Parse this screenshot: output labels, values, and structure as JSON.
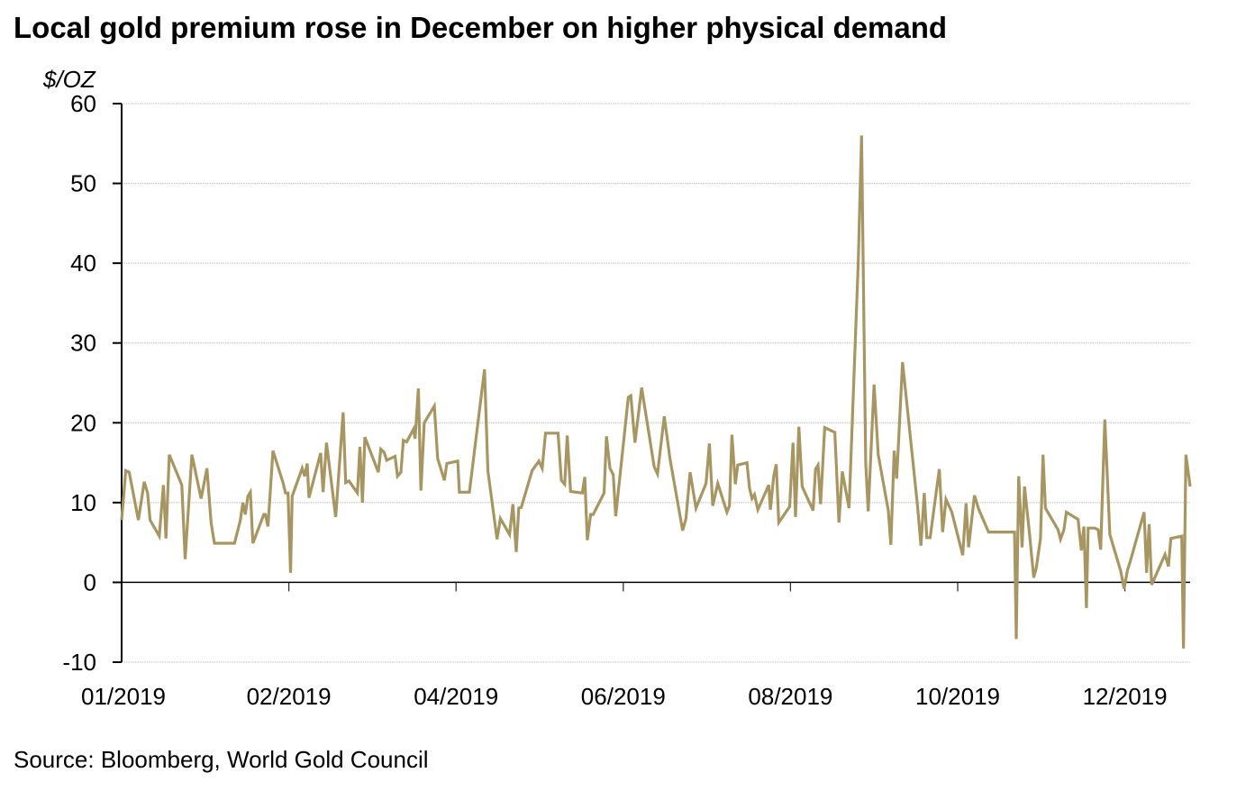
{
  "chart_data": {
    "type": "line",
    "title": "Local gold premium rose in December on higher physical demand",
    "ylabel": "$/OZ",
    "xlabel": "",
    "source": "Source: Bloomberg, World Gold Council",
    "ylim": [
      -10,
      60
    ],
    "yticks": [
      -10,
      0,
      10,
      20,
      30,
      40,
      50,
      60
    ],
    "x_unit": "months since start of 2019",
    "xlim": [
      0,
      12.78
    ],
    "xtick_labels": [
      {
        "t": 0,
        "label": "01/2019"
      },
      {
        "t": 2,
        "label": "02/2019"
      },
      {
        "t": 4,
        "label": "04/2019"
      },
      {
        "t": 6,
        "label": "06/2019"
      },
      {
        "t": 8,
        "label": "08/2019"
      },
      {
        "t": 10,
        "label": "10/2019"
      },
      {
        "t": 12,
        "label": "12/2019"
      }
    ],
    "xtick_marks": [
      2,
      4,
      6,
      8,
      10,
      12
    ],
    "grid": true,
    "legend": "none",
    "colors": {
      "line": "#a89662",
      "grid": "#bfbfbf",
      "axis": "#000000"
    },
    "series": [
      {
        "name": "Local gold premium",
        "points": [
          [
            0.0,
            7.8
          ],
          [
            0.05,
            14.0
          ],
          [
            0.09,
            13.8
          ],
          [
            0.2,
            7.8
          ],
          [
            0.27,
            12.6
          ],
          [
            0.31,
            11.2
          ],
          [
            0.34,
            7.8
          ],
          [
            0.45,
            5.8
          ],
          [
            0.5,
            12.2
          ],
          [
            0.53,
            5.5
          ],
          [
            0.57,
            16.0
          ],
          [
            0.72,
            12.2
          ],
          [
            0.76,
            2.9
          ],
          [
            0.84,
            16.0
          ],
          [
            0.95,
            10.5
          ],
          [
            1.02,
            14.3
          ],
          [
            1.07,
            7.5
          ],
          [
            1.11,
            4.9
          ],
          [
            1.35,
            4.9
          ],
          [
            1.42,
            7.8
          ],
          [
            1.45,
            10.0
          ],
          [
            1.48,
            8.5
          ],
          [
            1.51,
            10.8
          ],
          [
            1.54,
            11.3
          ],
          [
            1.57,
            4.9
          ],
          [
            1.7,
            8.5
          ],
          [
            1.72,
            8.5
          ],
          [
            1.75,
            7.0
          ],
          [
            1.81,
            16.5
          ],
          [
            1.93,
            12.5
          ],
          [
            1.96,
            11.2
          ],
          [
            1.99,
            11.2
          ],
          [
            2.02,
            1.2
          ],
          [
            2.04,
            10.8
          ],
          [
            2.16,
            14.3
          ],
          [
            2.19,
            13.3
          ],
          [
            2.22,
            14.9
          ],
          [
            2.24,
            10.6
          ],
          [
            2.38,
            16.2
          ],
          [
            2.41,
            11.3
          ],
          [
            2.45,
            17.5
          ],
          [
            2.56,
            8.2
          ],
          [
            2.65,
            21.3
          ],
          [
            2.68,
            12.5
          ],
          [
            2.72,
            12.7
          ],
          [
            2.82,
            11.2
          ],
          [
            2.85,
            17.0
          ],
          [
            2.88,
            10.0
          ],
          [
            2.91,
            18.2
          ],
          [
            3.07,
            13.8
          ],
          [
            3.1,
            16.7
          ],
          [
            3.14,
            16.3
          ],
          [
            3.17,
            15.3
          ],
          [
            3.27,
            15.8
          ],
          [
            3.3,
            13.3
          ],
          [
            3.34,
            13.8
          ],
          [
            3.37,
            17.8
          ],
          [
            3.41,
            17.6
          ],
          [
            3.49,
            19.2
          ],
          [
            3.51,
            18.0
          ],
          [
            3.55,
            24.3
          ],
          [
            3.58,
            11.5
          ],
          [
            3.62,
            20.0
          ],
          [
            3.74,
            22.1
          ],
          [
            3.78,
            15.5
          ],
          [
            3.86,
            12.8
          ],
          [
            3.89,
            14.9
          ],
          [
            4.02,
            15.2
          ],
          [
            4.04,
            11.3
          ],
          [
            4.16,
            11.3
          ],
          [
            4.34,
            26.7
          ],
          [
            4.38,
            14.0
          ],
          [
            4.49,
            5.4
          ],
          [
            4.53,
            8.0
          ],
          [
            4.64,
            6.0
          ],
          [
            4.68,
            9.8
          ],
          [
            4.72,
            3.8
          ],
          [
            4.75,
            9.3
          ],
          [
            4.78,
            9.4
          ],
          [
            4.91,
            14.0
          ],
          [
            4.99,
            15.2
          ],
          [
            5.03,
            14.3
          ],
          [
            5.07,
            18.7
          ],
          [
            5.22,
            18.7
          ],
          [
            5.26,
            12.8
          ],
          [
            5.3,
            12.3
          ],
          [
            5.33,
            18.4
          ],
          [
            5.37,
            11.4
          ],
          [
            5.51,
            11.2
          ],
          [
            5.54,
            13.2
          ],
          [
            5.57,
            5.3
          ],
          [
            5.61,
            8.5
          ],
          [
            5.64,
            8.5
          ],
          [
            5.77,
            11.2
          ],
          [
            5.8,
            18.3
          ],
          [
            5.84,
            14.3
          ],
          [
            5.88,
            13.5
          ],
          [
            5.91,
            8.3
          ],
          [
            6.06,
            23.2
          ],
          [
            6.09,
            23.4
          ],
          [
            6.14,
            17.5
          ],
          [
            6.22,
            24.4
          ],
          [
            6.37,
            14.5
          ],
          [
            6.41,
            13.6
          ],
          [
            6.49,
            20.8
          ],
          [
            6.56,
            15.4
          ],
          [
            6.71,
            6.5
          ],
          [
            6.75,
            8.0
          ],
          [
            6.8,
            13.8
          ],
          [
            6.87,
            9.3
          ],
          [
            6.99,
            12.4
          ],
          [
            7.03,
            17.4
          ],
          [
            7.07,
            9.6
          ],
          [
            7.13,
            12.4
          ],
          [
            7.24,
            8.8
          ],
          [
            7.27,
            9.6
          ],
          [
            7.3,
            18.5
          ],
          [
            7.34,
            12.3
          ],
          [
            7.37,
            14.7
          ],
          [
            7.48,
            15.0
          ],
          [
            7.51,
            11.8
          ],
          [
            7.54,
            10.5
          ],
          [
            7.57,
            11.0
          ],
          [
            7.61,
            9.1
          ],
          [
            7.74,
            12.2
          ],
          [
            7.76,
            9.1
          ],
          [
            7.8,
            13.3
          ],
          [
            7.83,
            14.8
          ],
          [
            7.86,
            7.5
          ],
          [
            7.99,
            9.5
          ],
          [
            8.03,
            17.5
          ],
          [
            8.06,
            8.2
          ],
          [
            8.1,
            19.5
          ],
          [
            8.14,
            12.0
          ],
          [
            8.27,
            9.0
          ],
          [
            8.3,
            14.2
          ],
          [
            8.33,
            14.7
          ],
          [
            8.36,
            9.8
          ],
          [
            8.41,
            19.4
          ],
          [
            8.53,
            18.8
          ],
          [
            8.58,
            7.5
          ],
          [
            8.62,
            13.9
          ],
          [
            8.7,
            9.3
          ],
          [
            8.81,
            40.0
          ],
          [
            8.85,
            56.0
          ],
          [
            8.9,
            15.0
          ],
          [
            8.93,
            8.9
          ],
          [
            9.0,
            24.8
          ],
          [
            9.05,
            16.0
          ],
          [
            9.17,
            9.0
          ],
          [
            9.2,
            4.7
          ],
          [
            9.24,
            16.5
          ],
          [
            9.27,
            13.0
          ],
          [
            9.34,
            27.6
          ],
          [
            9.52,
            9.5
          ],
          [
            9.56,
            4.6
          ],
          [
            9.6,
            11.2
          ],
          [
            9.63,
            5.6
          ],
          [
            9.67,
            5.6
          ],
          [
            9.78,
            14.2
          ],
          [
            9.82,
            6.3
          ],
          [
            9.86,
            10.4
          ],
          [
            9.93,
            8.8
          ],
          [
            10.06,
            3.4
          ],
          [
            10.1,
            9.9
          ],
          [
            10.13,
            4.4
          ],
          [
            10.2,
            10.9
          ],
          [
            10.25,
            9.2
          ],
          [
            10.37,
            6.3
          ],
          [
            10.68,
            6.3
          ],
          [
            10.7,
            -7.1
          ],
          [
            10.73,
            13.3
          ],
          [
            10.77,
            4.4
          ],
          [
            10.8,
            12.0
          ],
          [
            10.86,
            6.0
          ],
          [
            10.91,
            0.6
          ],
          [
            10.94,
            1.8
          ],
          [
            10.99,
            5.5
          ],
          [
            11.02,
            16.0
          ],
          [
            11.05,
            9.3
          ],
          [
            11.2,
            6.6
          ],
          [
            11.23,
            5.4
          ],
          [
            11.27,
            6.6
          ],
          [
            11.3,
            8.8
          ],
          [
            11.44,
            7.9
          ],
          [
            11.48,
            4.0
          ],
          [
            11.51,
            7.0
          ],
          [
            11.54,
            -3.2
          ],
          [
            11.56,
            6.8
          ],
          [
            11.64,
            6.8
          ],
          [
            11.68,
            6.6
          ],
          [
            11.71,
            4.1
          ],
          [
            11.76,
            20.4
          ],
          [
            11.82,
            6.0
          ],
          [
            11.95,
            1.4
          ],
          [
            11.99,
            -0.8
          ],
          [
            12.03,
            1.5
          ],
          [
            12.06,
            2.5
          ],
          [
            12.23,
            8.8
          ],
          [
            12.26,
            1.2
          ],
          [
            12.29,
            7.3
          ],
          [
            12.32,
            -0.3
          ],
          [
            12.48,
            3.5
          ],
          [
            12.52,
            2.0
          ],
          [
            12.55,
            5.5
          ],
          [
            12.68,
            5.8
          ],
          [
            12.7,
            -8.3
          ],
          [
            12.73,
            16.0
          ],
          [
            12.78,
            12.0
          ]
        ]
      }
    ]
  }
}
